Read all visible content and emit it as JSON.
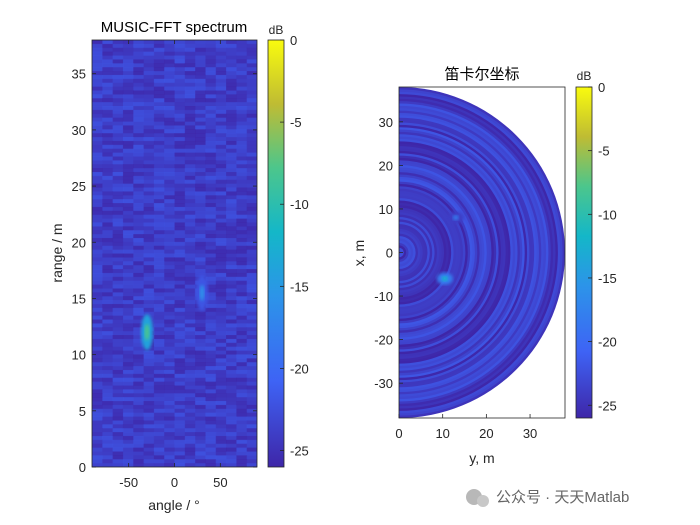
{
  "watermark": "公众号 · 天天Matlab",
  "chart_data": [
    {
      "type": "heatmap",
      "title": "MUSIC-FFT spectrum",
      "xlabel": "angle / °",
      "ylabel": "range / m",
      "xlim": [
        -90,
        90
      ],
      "ylim": [
        0,
        38
      ],
      "xticks": [
        -50,
        0,
        50
      ],
      "yticks": [
        0,
        5,
        10,
        15,
        20,
        25,
        30,
        35
      ],
      "colorbar": {
        "label": "dB",
        "range": [
          -26,
          0
        ],
        "ticks": [
          0,
          -5,
          -10,
          -15,
          -20,
          -25
        ]
      },
      "colormap": "parula",
      "background_level_db": -24,
      "peaks": [
        {
          "angle": -30,
          "range": 12,
          "level_db": -8
        },
        {
          "angle": 30,
          "range": 15.5,
          "level_db": -16
        }
      ]
    },
    {
      "type": "heatmap",
      "title": "笛卡尔坐标",
      "xlabel": "y, m",
      "ylabel": "x, m",
      "xlim": [
        0,
        38
      ],
      "ylim": [
        -38,
        38
      ],
      "xticks": [
        0,
        10,
        20,
        30
      ],
      "yticks": [
        -30,
        -20,
        -10,
        0,
        10,
        20,
        30
      ],
      "colorbar": {
        "label": "dB",
        "range": [
          -26,
          0
        ],
        "ticks": [
          0,
          -5,
          -10,
          -15,
          -20,
          -25
        ]
      },
      "colormap": "parula",
      "background_level_db": -24,
      "peaks": [
        {
          "y": 13,
          "x": 8,
          "level_db": -18
        },
        {
          "y": 10.5,
          "x": -6,
          "level_db": -12
        }
      ]
    }
  ]
}
